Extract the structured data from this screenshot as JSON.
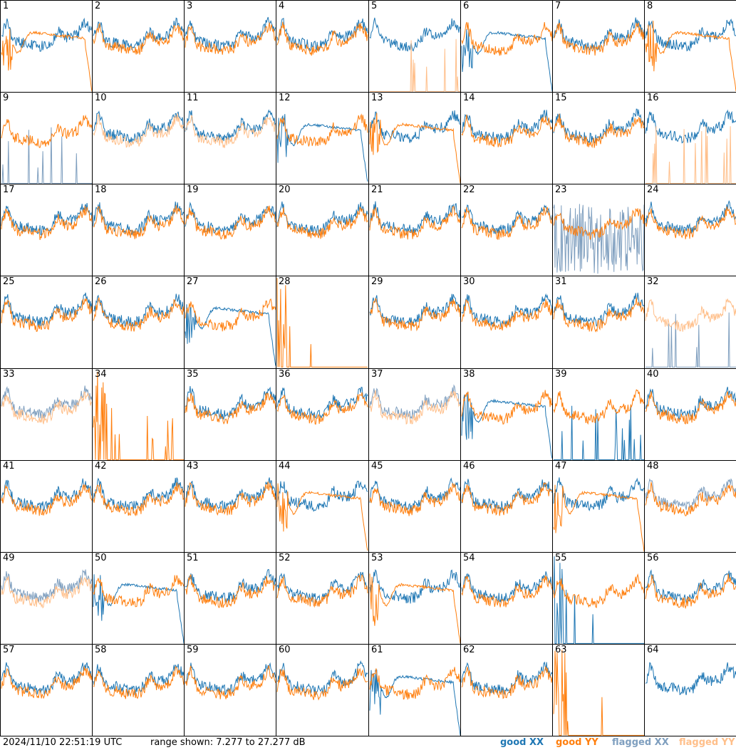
{
  "footer": {
    "timestamp": "2024/11/10 22:51:19 UTC",
    "range_text": "range shown: 7.277 to 27.277 dB"
  },
  "legend": {
    "good_xx": "good XX",
    "good_yy": "good YY",
    "flagged_xx": "flagged XX",
    "flagged_yy": "flagged YY"
  },
  "colors": {
    "good_xx": "#1f77b4",
    "good_yy": "#ff7f0e",
    "flagged_xx": "#7f9fbf",
    "flagged_yy": "#ffbf8a"
  },
  "chart_data": {
    "type": "line",
    "ylim": [
      7.277,
      27.277
    ],
    "yunit": "dB",
    "panels": [
      {
        "id": "1",
        "xx": "good",
        "yy": "good",
        "shape": "drop_yy"
      },
      {
        "id": "2",
        "xx": "good",
        "yy": "good",
        "shape": "normal"
      },
      {
        "id": "3",
        "xx": "good",
        "yy": "good",
        "shape": "normal"
      },
      {
        "id": "4",
        "xx": "good",
        "yy": "good",
        "shape": "normal"
      },
      {
        "id": "5",
        "xx": "good",
        "yy": "flagged",
        "shape": "spikes_yy"
      },
      {
        "id": "6",
        "xx": "good",
        "yy": "good",
        "shape": "drop_xx"
      },
      {
        "id": "7",
        "xx": "good",
        "yy": "good",
        "shape": "normal"
      },
      {
        "id": "8",
        "xx": "good",
        "yy": "good",
        "shape": "drop_yy"
      },
      {
        "id": "9",
        "xx": "flagged",
        "yy": "good",
        "shape": "spikes_xx"
      },
      {
        "id": "10",
        "xx": "good",
        "yy": "flagged",
        "shape": "normal"
      },
      {
        "id": "11",
        "xx": "good",
        "yy": "flagged",
        "shape": "normal"
      },
      {
        "id": "12",
        "xx": "good",
        "yy": "good",
        "shape": "drop_xx"
      },
      {
        "id": "13",
        "xx": "good",
        "yy": "good",
        "shape": "drop_yy"
      },
      {
        "id": "14",
        "xx": "good",
        "yy": "good",
        "shape": "normal"
      },
      {
        "id": "15",
        "xx": "good",
        "yy": "good",
        "shape": "normal"
      },
      {
        "id": "16",
        "xx": "good",
        "yy": "flagged",
        "shape": "spikes_yy"
      },
      {
        "id": "17",
        "xx": "good",
        "yy": "good",
        "shape": "normal"
      },
      {
        "id": "18",
        "xx": "good",
        "yy": "good",
        "shape": "normal"
      },
      {
        "id": "19",
        "xx": "good",
        "yy": "good",
        "shape": "normal"
      },
      {
        "id": "20",
        "xx": "good",
        "yy": "good",
        "shape": "normal"
      },
      {
        "id": "21",
        "xx": "good",
        "yy": "good",
        "shape": "normal"
      },
      {
        "id": "22",
        "xx": "good",
        "yy": "good",
        "shape": "normal"
      },
      {
        "id": "23",
        "xx": "flagged",
        "yy": "good",
        "shape": "noisy_xx"
      },
      {
        "id": "24",
        "xx": "good",
        "yy": "good",
        "shape": "normal"
      },
      {
        "id": "25",
        "xx": "good",
        "yy": "good",
        "shape": "normal"
      },
      {
        "id": "26",
        "xx": "good",
        "yy": "good",
        "shape": "normal"
      },
      {
        "id": "27",
        "xx": "good",
        "yy": "good",
        "shape": "drop_xx"
      },
      {
        "id": "28",
        "xx": "good",
        "yy": "good",
        "shape": "dead_yy"
      },
      {
        "id": "29",
        "xx": "good",
        "yy": "good",
        "shape": "normal"
      },
      {
        "id": "30",
        "xx": "good",
        "yy": "good",
        "shape": "normal"
      },
      {
        "id": "31",
        "xx": "good",
        "yy": "good",
        "shape": "normal"
      },
      {
        "id": "32",
        "xx": "flagged",
        "yy": "flagged",
        "shape": "spikes_xx"
      },
      {
        "id": "33",
        "xx": "flagged",
        "yy": "flagged",
        "shape": "normal"
      },
      {
        "id": "34",
        "xx": "good",
        "yy": "good",
        "shape": "dead_yy"
      },
      {
        "id": "35",
        "xx": "good",
        "yy": "good",
        "shape": "normal"
      },
      {
        "id": "36",
        "xx": "good",
        "yy": "good",
        "shape": "normal"
      },
      {
        "id": "37",
        "xx": "flagged",
        "yy": "flagged",
        "shape": "normal"
      },
      {
        "id": "38",
        "xx": "good",
        "yy": "good",
        "shape": "drop_xx"
      },
      {
        "id": "39",
        "xx": "good",
        "yy": "good",
        "shape": "spikes_xx"
      },
      {
        "id": "40",
        "xx": "good",
        "yy": "good",
        "shape": "normal"
      },
      {
        "id": "41",
        "xx": "good",
        "yy": "good",
        "shape": "normal"
      },
      {
        "id": "42",
        "xx": "good",
        "yy": "good",
        "shape": "normal"
      },
      {
        "id": "43",
        "xx": "good",
        "yy": "good",
        "shape": "normal"
      },
      {
        "id": "44",
        "xx": "good",
        "yy": "good",
        "shape": "drop_yy"
      },
      {
        "id": "45",
        "xx": "good",
        "yy": "good",
        "shape": "normal"
      },
      {
        "id": "46",
        "xx": "good",
        "yy": "good",
        "shape": "normal"
      },
      {
        "id": "47",
        "xx": "good",
        "yy": "good",
        "shape": "drop_yy"
      },
      {
        "id": "48",
        "xx": "flagged",
        "yy": "good",
        "shape": "normal"
      },
      {
        "id": "49",
        "xx": "flagged",
        "yy": "flagged",
        "shape": "normal"
      },
      {
        "id": "50",
        "xx": "good",
        "yy": "good",
        "shape": "drop_xx"
      },
      {
        "id": "51",
        "xx": "good",
        "yy": "good",
        "shape": "normal"
      },
      {
        "id": "52",
        "xx": "good",
        "yy": "good",
        "shape": "normal"
      },
      {
        "id": "53",
        "xx": "good",
        "yy": "good",
        "shape": "drop_yy"
      },
      {
        "id": "54",
        "xx": "good",
        "yy": "good",
        "shape": "normal"
      },
      {
        "id": "55",
        "xx": "good",
        "yy": "good",
        "shape": "dead_xx"
      },
      {
        "id": "56",
        "xx": "good",
        "yy": "good",
        "shape": "normal"
      },
      {
        "id": "57",
        "xx": "good",
        "yy": "good",
        "shape": "normal"
      },
      {
        "id": "58",
        "xx": "good",
        "yy": "good",
        "shape": "normal"
      },
      {
        "id": "59",
        "xx": "good",
        "yy": "good",
        "shape": "normal"
      },
      {
        "id": "60",
        "xx": "good",
        "yy": "good",
        "shape": "normal"
      },
      {
        "id": "61",
        "xx": "good",
        "yy": "good",
        "shape": "drop_xx"
      },
      {
        "id": "62",
        "xx": "good",
        "yy": "good",
        "shape": "normal"
      },
      {
        "id": "63",
        "xx": "good",
        "yy": "good",
        "shape": "dead_yy"
      },
      {
        "id": "64",
        "xx": "good",
        "yy": "good",
        "shape": "xx_only"
      }
    ]
  }
}
